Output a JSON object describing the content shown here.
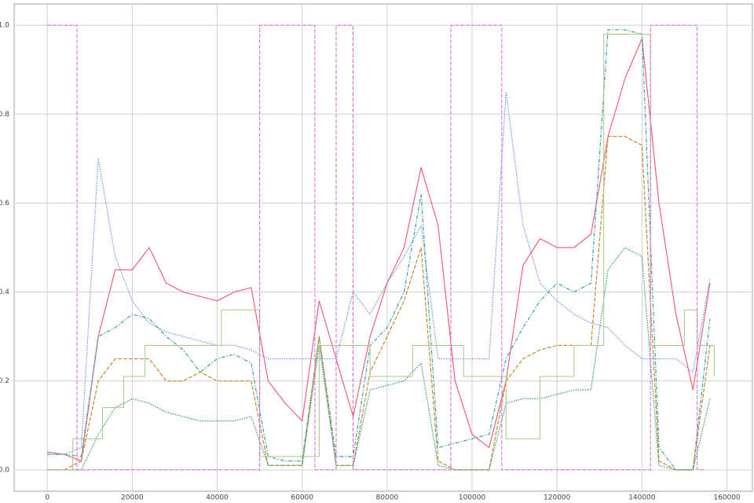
{
  "chart_data": {
    "type": "line",
    "grid": true,
    "xlim": [
      -7800,
      166000
    ],
    "ylim": [
      -0.048,
      1.048
    ],
    "xticks": [
      0,
      20000,
      40000,
      60000,
      80000,
      100000,
      120000,
      140000,
      160000
    ],
    "yticks": [
      {
        "value": 0,
        "label": "0.0"
      },
      0.2,
      0.4,
      0.6,
      0.8,
      {
        "value": 1,
        "label": "1.0"
      }
    ],
    "x": [
      0,
      4000,
      8000,
      12000,
      16000,
      20000,
      24000,
      28000,
      32000,
      36000,
      40000,
      44000,
      48000,
      52000,
      56000,
      60000,
      64000,
      68000,
      72000,
      76000,
      80000,
      84000,
      88000,
      92000,
      96000,
      100000,
      104000,
      108000,
      112000,
      116000,
      120000,
      124000,
      128000,
      132000,
      136000,
      140000,
      144000,
      148000,
      152000,
      156000
    ],
    "series": [
      {
        "color": "#f0607a",
        "linestyle": "solid",
        "width": 1.2,
        "values": [
          0.04,
          0.035,
          0.02,
          0.3,
          0.45,
          0.45,
          0.5,
          0.42,
          0.4,
          0.39,
          0.38,
          0.4,
          0.41,
          0.2,
          0.15,
          0.11,
          0.38,
          0.25,
          0.12,
          0.3,
          0.42,
          0.5,
          0.68,
          0.55,
          0.2,
          0.08,
          0.05,
          0.2,
          0.46,
          0.52,
          0.5,
          0.5,
          0.53,
          0.75,
          0.88,
          0.97,
          0.6,
          0.35,
          0.18,
          0.42
        ]
      },
      {
        "color": "#6e8ff0",
        "linestyle": "dotted",
        "width": 1.2,
        "values": [
          0.035,
          0.035,
          0.05,
          0.7,
          0.48,
          0.38,
          0.33,
          0.31,
          0.3,
          0.29,
          0.28,
          0.28,
          0.27,
          0.25,
          0.25,
          0.25,
          0.25,
          0.25,
          0.4,
          0.35,
          0.42,
          0.48,
          0.55,
          0.25,
          0.25,
          0.25,
          0.25,
          0.85,
          0.55,
          0.42,
          0.38,
          0.35,
          0.33,
          0.32,
          0.28,
          0.25,
          0.25,
          0.25,
          0.22,
          0.43
        ]
      },
      {
        "color": "#3aa0b0",
        "linestyle": "dashdot",
        "width": 1.2,
        "values": [
          0.035,
          0.035,
          0.03,
          0.3,
          0.32,
          0.35,
          0.34,
          0.3,
          0.27,
          0.22,
          0.25,
          0.26,
          0.24,
          0.03,
          0.02,
          0.02,
          0.3,
          0.03,
          0.03,
          0.28,
          0.32,
          0.4,
          0.62,
          0.05,
          0.06,
          0.07,
          0.08,
          0.25,
          0.32,
          0.38,
          0.42,
          0.4,
          0.42,
          0.99,
          0.99,
          0.98,
          0.05,
          0,
          0,
          0.34
        ]
      },
      {
        "color": "#c8882a",
        "linestyle": "dashed",
        "width": 1.2,
        "values": [
          0,
          0,
          0.02,
          0.2,
          0.25,
          0.25,
          0.25,
          0.2,
          0.2,
          0.22,
          0.2,
          0.2,
          0.2,
          0.01,
          0.01,
          0.01,
          0.3,
          0.01,
          0.01,
          0.22,
          0.3,
          0.38,
          0.5,
          0.02,
          0,
          0,
          0,
          0.2,
          0.25,
          0.27,
          0.28,
          0.28,
          0.28,
          0.75,
          0.75,
          0.73,
          0.02,
          0,
          0,
          0.28
        ]
      },
      {
        "color": "#2a9a70",
        "linestyle": "dotted",
        "width": 1.2,
        "values": [
          0,
          0,
          0,
          0.08,
          0.14,
          0.16,
          0.15,
          0.13,
          0.12,
          0.11,
          0.11,
          0.11,
          0.12,
          0.01,
          0.01,
          0.01,
          0.28,
          0.01,
          0.01,
          0.18,
          0.19,
          0.2,
          0.24,
          0.01,
          0,
          0,
          0,
          0.15,
          0.16,
          0.16,
          0.17,
          0.18,
          0.18,
          0.45,
          0.5,
          0.48,
          0.01,
          0,
          0,
          0.16
        ]
      },
      {
        "color": "#a8c880",
        "linestyle": "solid",
        "width": 1,
        "drawstyle": "steps-post",
        "x": [
          0,
          6000,
          13000,
          18000,
          23000,
          41000,
          50000,
          64000,
          76000,
          86000,
          98000,
          108000,
          116000,
          124000,
          131000,
          142000,
          150000,
          153000,
          157000
        ],
        "values": [
          0,
          0.07,
          0.14,
          0.21,
          0.28,
          0.36,
          0.03,
          0.28,
          0.21,
          0.28,
          0.21,
          0.07,
          0.21,
          0.28,
          0.98,
          0.28,
          0.36,
          0.28,
          0.21
        ]
      },
      {
        "color": "#e060e0",
        "linestyle": "dashed",
        "width": 1,
        "drawstyle": "steps-post",
        "x": [
          0,
          7000,
          50000,
          63000,
          68000,
          72000,
          95000,
          107000,
          142000,
          153000,
          155000
        ],
        "values": [
          1,
          0,
          1,
          0,
          1,
          0,
          1,
          0,
          1,
          0,
          0
        ]
      }
    ]
  }
}
